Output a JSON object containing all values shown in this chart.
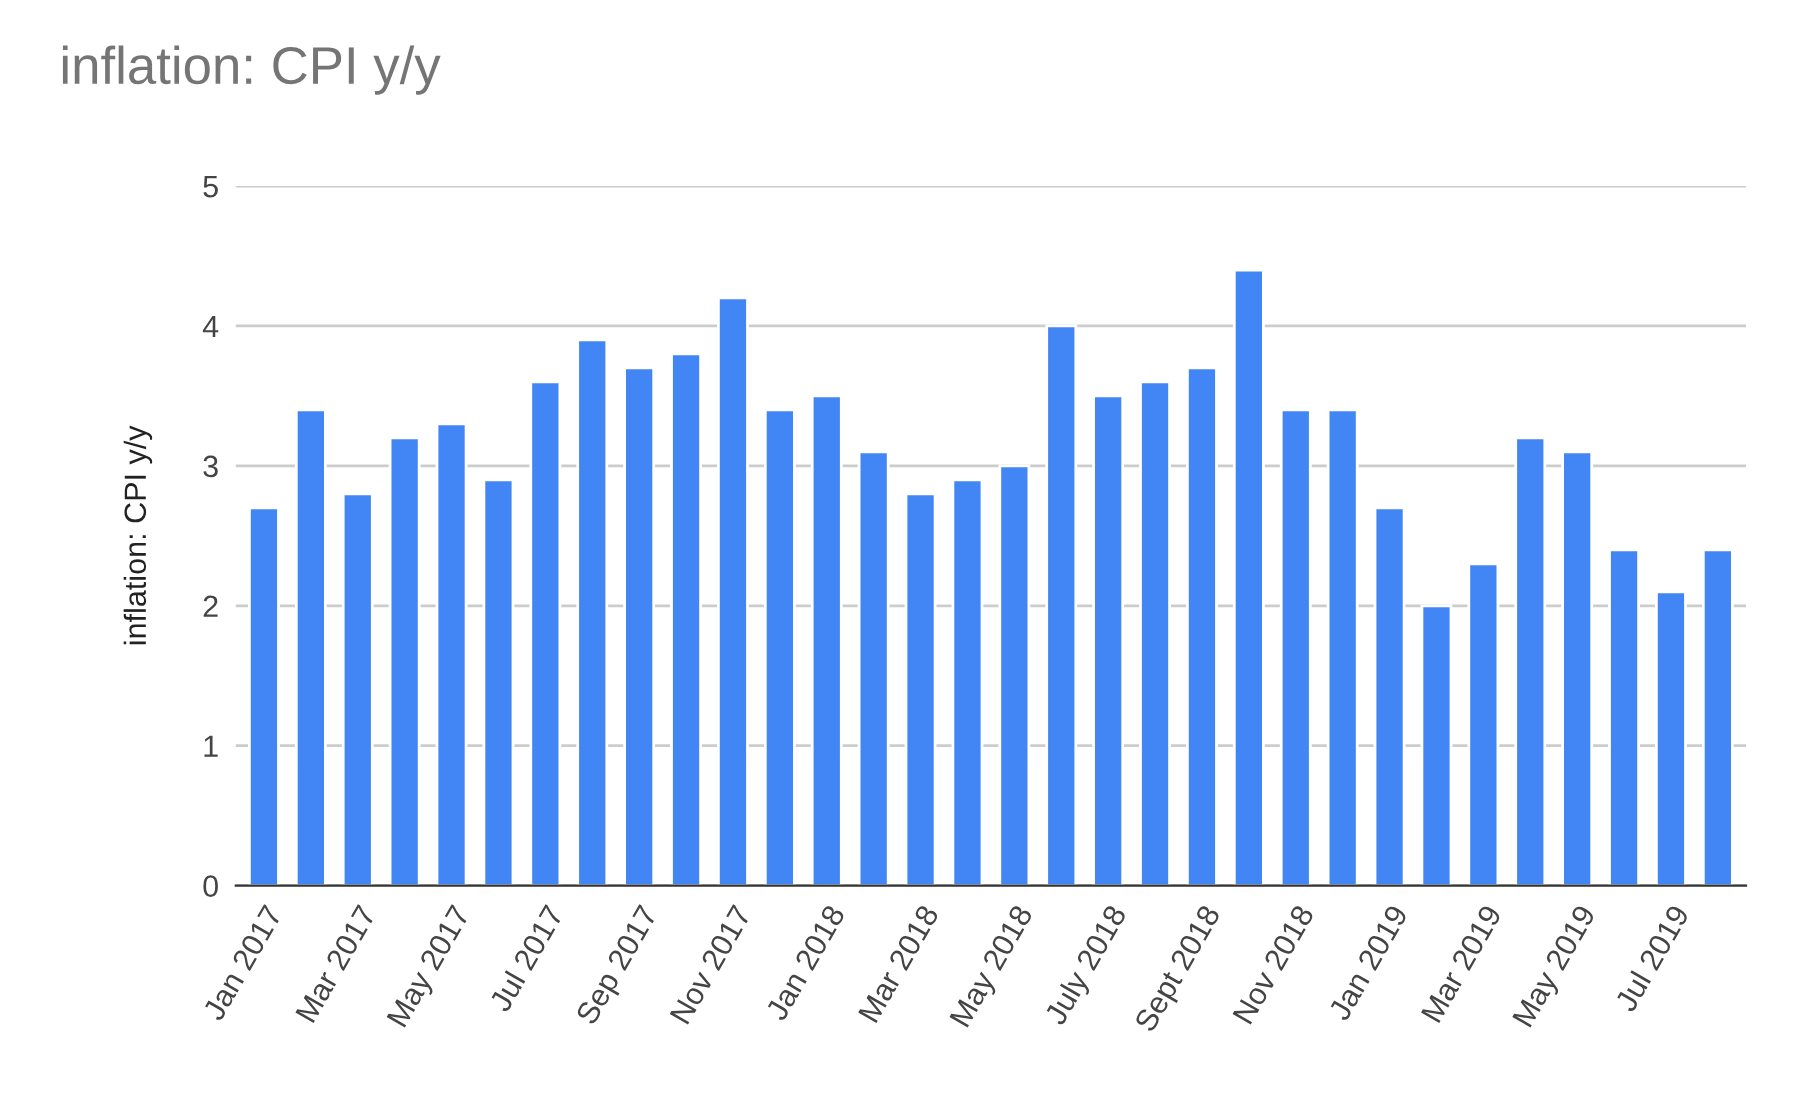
{
  "chart_data": {
    "type": "bar",
    "title": "inflation: CPI y/y",
    "ylabel": "inflation: CPI y/y",
    "categories": [
      "Jan 2017",
      null,
      "Mar 2017",
      null,
      "May 2017",
      null,
      "Jul 2017",
      null,
      "Sep 2017",
      null,
      "Nov 2017",
      null,
      "Jan 2018",
      null,
      "Mar 2018",
      null,
      "May 2018",
      null,
      "July 2018",
      null,
      "Sept 2018",
      null,
      "Nov 2018",
      null,
      "Jan 2019",
      null,
      "Mar 2019",
      null,
      "May 2019",
      null,
      "Jul 2019",
      null
    ],
    "values": [
      2.7,
      3.4,
      2.8,
      3.2,
      3.3,
      2.9,
      3.6,
      3.9,
      3.7,
      3.8,
      4.2,
      3.4,
      3.5,
      3.1,
      2.8,
      2.9,
      3.0,
      4.0,
      3.5,
      3.6,
      3.7,
      4.4,
      3.4,
      3.4,
      2.7,
      2.0,
      2.3,
      3.2,
      3.1,
      2.4,
      2.1,
      2.4
    ],
    "color": "#4285f4",
    "ylim": [
      0,
      5
    ],
    "yticks": [
      0,
      1,
      2,
      3,
      4,
      5
    ],
    "grid": "y",
    "legend": false
  }
}
